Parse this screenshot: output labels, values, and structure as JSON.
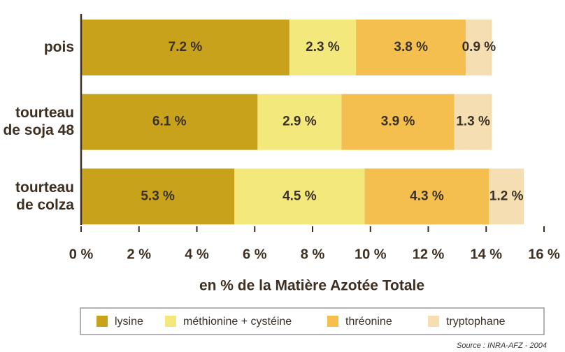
{
  "chart_data": {
    "type": "stacked-barh",
    "categories": [
      "pois",
      "tourteau de soja 48",
      "tourteau de colza"
    ],
    "series": [
      {
        "name": "lysine",
        "color": "#c9a21c",
        "values": [
          7.2,
          6.1,
          5.3
        ],
        "value_labels": [
          "7.2 %",
          "6.1 %",
          "5.3 %"
        ]
      },
      {
        "name": "méthionine + cystéine",
        "color": "#f3e87c",
        "values": [
          2.3,
          2.9,
          4.5
        ],
        "value_labels": [
          "2.3 %",
          "2.9 %",
          "4.5 %"
        ]
      },
      {
        "name": "thréonine",
        "color": "#f5bf4f",
        "values": [
          3.8,
          3.9,
          4.3
        ],
        "value_labels": [
          "3.8 %",
          "3.9 %",
          "4.3 %"
        ]
      },
      {
        "name": "tryptophane",
        "color": "#f5dfb2",
        "values": [
          0.9,
          1.3,
          1.2
        ],
        "value_labels": [
          "0.9 %",
          "1.3 %",
          "1.2 %"
        ]
      }
    ],
    "xlabel": "en % de la Matière Azotée Totale",
    "xlim": [
      0,
      16
    ],
    "xticks": [
      {
        "value": 0,
        "label": "0 %"
      },
      {
        "value": 2,
        "label": "2 %"
      },
      {
        "value": 4,
        "label": "4 %"
      },
      {
        "value": 6,
        "label": "6 %"
      },
      {
        "value": 8,
        "label": "8 %"
      },
      {
        "value": 10,
        "label": "10 %"
      },
      {
        "value": 12,
        "label": "12 %"
      },
      {
        "value": 14,
        "label": "14 %"
      },
      {
        "value": 16,
        "label": "16 %"
      }
    ],
    "legend": "bottom",
    "source": "Source : INRA-AFZ - 2004"
  }
}
